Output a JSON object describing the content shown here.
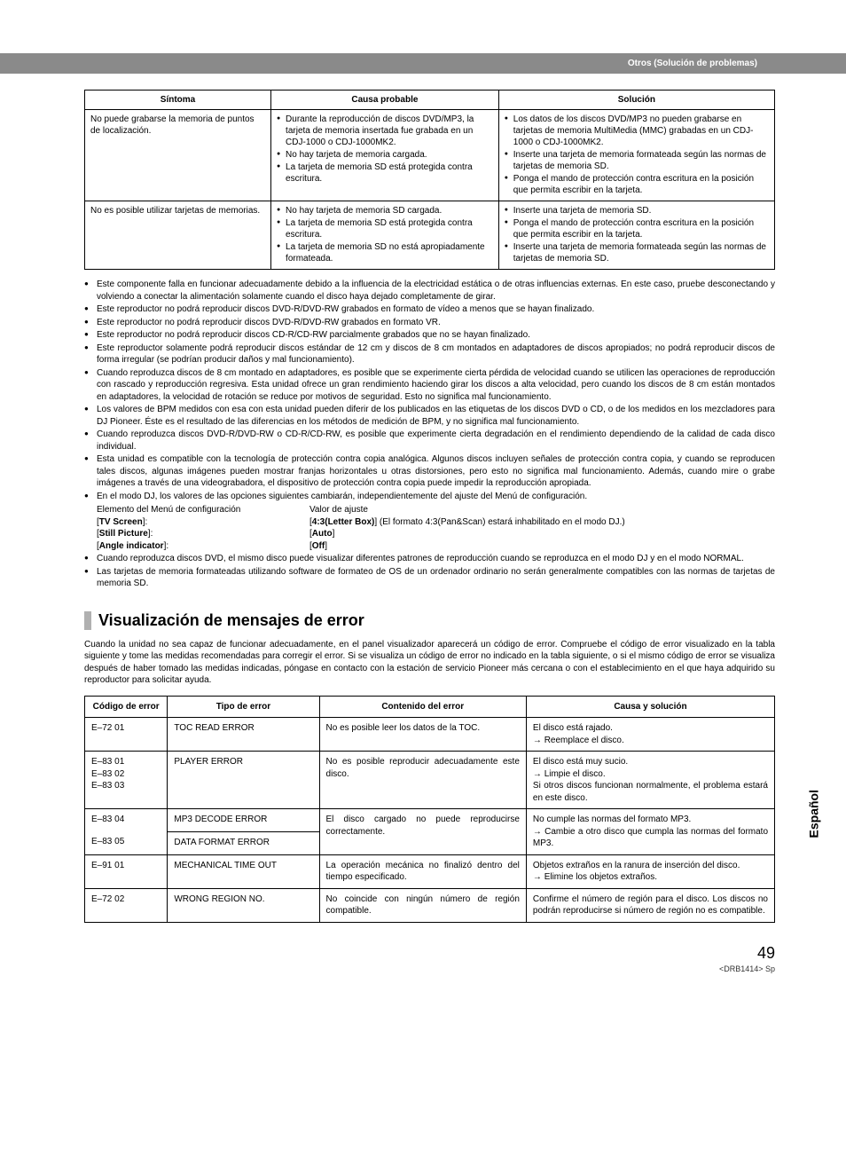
{
  "header": "Otros (Solución de problemas)",
  "troubleTable": {
    "headers": [
      "Síntoma",
      "Causa probable",
      "Solución"
    ],
    "rows": [
      {
        "symptom": "No puede grabarse la memoria de puntos de localización.",
        "causes": [
          "Durante la reproducción de discos DVD/MP3, la tarjeta de memoria insertada fue grabada en un CDJ-1000 o CDJ-1000MK2.",
          "No hay tarjeta de memoria cargada.",
          "La tarjeta de memoria SD está protegida contra escritura."
        ],
        "solutions": [
          "Los datos de los discos DVD/MP3 no pueden grabarse en tarjetas de memoria MultiMedia (MMC) grabadas en un CDJ-1000 o CDJ-1000MK2.",
          "Inserte una tarjeta de memoria formateada según las normas de tarjetas de memoria SD.",
          "Ponga el mando de protección contra escritura en la posición que permita escribir en la tarjeta."
        ]
      },
      {
        "symptom": "No es posible utilizar tarjetas de memorias.",
        "causes": [
          "No hay tarjeta de memoria SD cargada.",
          "La tarjeta de memoria SD está protegida contra escritura.",
          "La tarjeta de memoria SD no está apropiadamente formateada."
        ],
        "solutions": [
          "Inserte una tarjeta de memoria SD.",
          "Ponga el mando de protección contra escritura en la posición que permita escribir en la tarjeta.",
          "Inserte una tarjeta de memoria formateada según las normas de tarjetas de memoria SD."
        ]
      }
    ]
  },
  "notes": [
    "Este componente falla en funcionar adecuadamente debido a la influencia de la electricidad estática o de otras influencias externas. En este caso, pruebe desconectando y volviendo a conectar la alimentación solamente cuando el disco haya dejado completamente de girar.",
    "Este reproductor no podrá reproducir discos DVD-R/DVD-RW grabados en formato de vídeo a menos que se hayan finalizado.",
    "Este reproductor no podrá reproducir discos DVD-R/DVD-RW grabados en formato VR.",
    "Este reproductor no podrá reproducir discos CD-R/CD-RW parcialmente grabados que no se hayan finalizado.",
    "Este reproductor solamente podrá reproducir discos estándar de 12 cm y discos de 8 cm montados en adaptadores de discos apropiados; no podrá reproducir discos de forma irregular (se podrían producir daños y mal funcionamiento).",
    "Cuando reproduzca discos de 8 cm montado en adaptadores, es posible que se experimente cierta pérdida de velocidad cuando se utilicen las operaciones de reproducción con rascado y reproducción regresiva. Esta unidad ofrece un gran rendimiento haciendo girar los discos a alta velocidad, pero cuando los discos de 8 cm están montados en adaptadores, la velocidad de rotación se reduce por motivos de seguridad. Esto no significa mal funcionamiento.",
    "Los valores de BPM medidos con esa con esta unidad pueden diferir de los publicados en las etiquetas de los discos DVD o CD, o de los medidos en los mezcladores para DJ Pioneer. Éste es el resultado de las diferencias en los métodos de medición de BPM, y no significa mal funcionamiento.",
    "Cuando reproduzca discos DVD-R/DVD-RW o CD-R/CD-RW, es posible que experimente cierta degradación en el rendimiento dependiendo de la calidad de cada disco individual.",
    "Esta unidad es compatible con la tecnología de protección contra copia analógica. Algunos discos incluyen señales de protección contra copia, y cuando se reproducen tales discos, algunas imágenes pueden mostrar franjas horizontales u otras distorsiones, pero esto no significa mal funcionamiento. Además, cuando mire o grabe imágenes a través de una videograbadora, el dispositivo de protección contra copia puede impedir la reproducción apropiada.",
    "En el modo DJ, los valores de las opciones siguientes cambiarán, independientemente del ajuste del Menú de configuración."
  ],
  "settingsHeader": {
    "k": "Elemento del Menú de configuración",
    "v": "Valor de ajuste"
  },
  "settingsRows": [
    {
      "k": "[TV Screen]:",
      "v": "[4:3(Letter Box)] (El formato 4:3(Pan&Scan) estará inhabilitado en el modo DJ.)",
      "boldK": "TV Screen",
      "boldV": "4:3(Letter Box)"
    },
    {
      "k": "[Still Picture]:",
      "v": "[Auto]",
      "boldK": "Still Picture",
      "boldV": "Auto"
    },
    {
      "k": "[Angle indicator]:",
      "v": "[Off]",
      "boldK": "Angle indicator",
      "boldV": "Off"
    }
  ],
  "notesTail": [
    "Cuando reproduzca discos DVD, el mismo disco puede visualizar diferentes patrones de reproducción cuando se reproduzca en el modo DJ y en el modo NORMAL.",
    "Las tarjetas de memoria formateadas utilizando software de formateo de OS de un ordenador ordinario no serán generalmente compatibles con las normas de tarjetas de memoria SD."
  ],
  "sectionTitle": "Visualización de mensajes de error",
  "sectionIntro": "Cuando la unidad no sea capaz de funcionar adecuadamente, en el panel visualizador aparecerá un código de error. Compruebe el código de error visualizado en la tabla siguiente y tome las medidas recomendadas para corregir el error. Si se visualiza un código de error no indicado en la tabla siguiente, o si el mismo código de error se visualiza después de haber tomado las medidas indicadas, póngase en contacto con la estación de servicio Pioneer más cercana o con el establecimiento en el que haya adquirido su reproductor para solicitar ayuda.",
  "errorTable": {
    "headers": [
      "Código de error",
      "Tipo de error",
      "Contenido del error",
      "Causa y solución"
    ]
  },
  "err": {
    "r1c1": "E–72 01",
    "r1c2": "TOC READ ERROR",
    "r1c3": "No es posible leer los datos de la TOC.",
    "r1c4a": "El disco está rajado.",
    "r1c4b": "Reemplace el disco.",
    "r2c1a": "E–83 01",
    "r2c1b": "E–83 02",
    "r2c1c": "E–83 03",
    "r2c2": "PLAYER ERROR",
    "r2c3": "No es posible reproducir adecuadamente este disco.",
    "r2c4a": "El disco está muy sucio.",
    "r2c4b": "Limpie el disco.",
    "r2c4c": "Si otros discos funcionan normalmente, el problema estará en este disco.",
    "r3c1": "E–83 04",
    "r3c2": "MP3 DECODE ERROR",
    "r3c3": "El disco cargado no puede reproducirse correctamente.",
    "r3c4a": "No cumple las normas del formato MP3.",
    "r3c4b": "Cambie a otro disco que cumpla las normas del formato MP3.",
    "r4c1": "E–83 05",
    "r4c2": "DATA FORMAT ERROR",
    "r5c1": "E–91 01",
    "r5c2": "MECHANICAL TIME OUT",
    "r5c3": "La operación mecánica no finalizó dentro del tiempo especificado.",
    "r5c4a": "Objetos extraños en la ranura de inserción del disco.",
    "r5c4b": "Elimine los objetos extraños.",
    "r6c1": "E–72 02",
    "r6c2": "WRONG REGION NO.",
    "r6c3": "No coincide con ningún número de región compatible.",
    "r6c4": "Confirme el número de región para el disco. Los discos no podrán reproducirse si número de región no es compatible."
  },
  "sideTab": "Español",
  "pageNum": "49",
  "footer": "<DRB1414> Sp"
}
